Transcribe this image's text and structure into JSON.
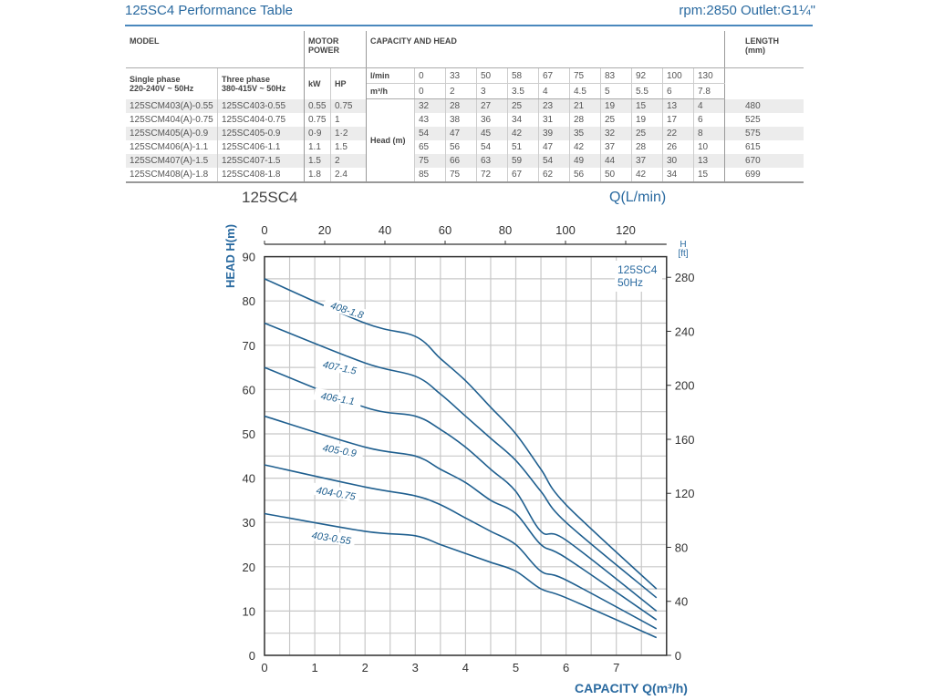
{
  "header": {
    "title": "125SC4 Performance Table",
    "specs": "rpm:2850  Outlet:G1¼\""
  },
  "table": {
    "model_label": "MODEL",
    "motor_label": "MOTOR POWER",
    "capacity_label": "CAPACITY AND HEAD",
    "length_label": "LENGTH (mm)",
    "single_phase": "Single phase",
    "single_volt": "220-240V ~ 50Hz",
    "three_phase": "Three phase",
    "three_volt": "380-415V ~ 50Hz",
    "kw": "kW",
    "hp": "HP",
    "lmin_label": "l/min",
    "m3h_label": "m³/h",
    "head_label": "Head (m)",
    "lmin": [
      "0",
      "33",
      "50",
      "58",
      "67",
      "75",
      "83",
      "92",
      "100",
      "130"
    ],
    "m3h": [
      "0",
      "2",
      "3",
      "3.5",
      "4",
      "4.5",
      "5",
      "5.5",
      "6",
      "7.8"
    ],
    "rows": [
      {
        "single": "125SCM403(A)-0.55",
        "three": "125SC403-0.55",
        "kw": "0.55",
        "hp": "0.75",
        "heads": [
          "32",
          "28",
          "27",
          "25",
          "23",
          "21",
          "19",
          "15",
          "13",
          "4"
        ],
        "length": "480"
      },
      {
        "single": "125SCM404(A)-0.75",
        "three": "125SC404-0.75",
        "kw": "0.75",
        "hp": "1",
        "heads": [
          "43",
          "38",
          "36",
          "34",
          "31",
          "28",
          "25",
          "19",
          "17",
          "6"
        ],
        "length": "525"
      },
      {
        "single": "125SCM405(A)-0.9",
        "three": "125SC405-0.9",
        "kw": "0·9",
        "hp": "1·2",
        "heads": [
          "54",
          "47",
          "45",
          "42",
          "39",
          "35",
          "32",
          "25",
          "22",
          "8"
        ],
        "length": "575"
      },
      {
        "single": "125SCM406(A)-1.1",
        "three": "125SC406-1.1",
        "kw": "1.1",
        "hp": "1.5",
        "heads": [
          "65",
          "56",
          "54",
          "51",
          "47",
          "42",
          "37",
          "28",
          "26",
          "10"
        ],
        "length": "615"
      },
      {
        "single": "125SCM407(A)-1.5",
        "three": "125SC407-1.5",
        "kw": "1.5",
        "hp": "2",
        "heads": [
          "75",
          "66",
          "63",
          "59",
          "54",
          "49",
          "44",
          "37",
          "30",
          "13"
        ],
        "length": "670"
      },
      {
        "single": "125SCM408(A)-1.8",
        "three": "125SC408-1.8",
        "kw": "1.8",
        "hp": "2.4",
        "heads": [
          "85",
          "75",
          "72",
          "67",
          "62",
          "56",
          "50",
          "42",
          "34",
          "15"
        ],
        "length": "699"
      }
    ]
  },
  "chart_data": {
    "type": "line",
    "title": "125SC4",
    "legend_text": [
      "125SC4",
      "50Hz"
    ],
    "xlabel": "CAPACITY Q(m³/h)",
    "ylabel": "HEAD H(m)",
    "x2label": "Q(L/min)",
    "y2label": [
      "H",
      "[ft]"
    ],
    "xlim": [
      0,
      8
    ],
    "ylim": [
      0,
      90
    ],
    "xticks": [
      "0",
      "1",
      "2",
      "3",
      "4",
      "5",
      "6",
      "7"
    ],
    "yticks": [
      "0",
      "10",
      "20",
      "30",
      "40",
      "50",
      "60",
      "70",
      "80",
      "90"
    ],
    "x2ticks": [
      "0",
      "20",
      "40",
      "60",
      "80",
      "100",
      "120"
    ],
    "y2ticks": [
      "0",
      "40",
      "80",
      "120",
      "160",
      "200",
      "240",
      "280"
    ],
    "grid": true,
    "x": [
      0,
      2,
      3,
      3.5,
      4,
      4.5,
      5,
      5.5,
      6,
      7.8
    ],
    "series": [
      {
        "name": "403-0.55",
        "values": [
          32,
          28,
          27,
          25,
          23,
          21,
          19,
          15,
          13,
          4
        ]
      },
      {
        "name": "404-0.75",
        "values": [
          43,
          38,
          36,
          34,
          31,
          28,
          25,
          19,
          17,
          6
        ]
      },
      {
        "name": "405-0.9",
        "values": [
          54,
          47,
          45,
          42,
          39,
          35,
          32,
          25,
          22,
          8
        ]
      },
      {
        "name": "406-1.1",
        "values": [
          65,
          56,
          54,
          51,
          47,
          42,
          37,
          28,
          26,
          10
        ]
      },
      {
        "name": "407-1.5",
        "values": [
          75,
          66,
          63,
          59,
          54,
          49,
          44,
          37,
          30,
          13
        ]
      },
      {
        "name": "408-1.8",
        "values": [
          85,
          75,
          72,
          67,
          62,
          56,
          50,
          42,
          34,
          15
        ]
      }
    ],
    "colors": {
      "curve": "#1f5f8f",
      "label": "#1f5f8f",
      "grid": "#c8c8c8",
      "axis_title": "#2a6aa0"
    }
  }
}
